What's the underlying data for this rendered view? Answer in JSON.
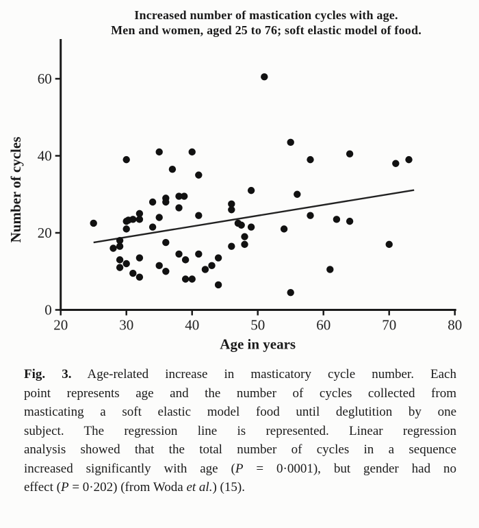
{
  "figure": {
    "title_line1": "Increased number of mastication cycles with age.",
    "title_line2": "Men and women, aged 25 to 76; soft elastic model of food."
  },
  "chart_data": {
    "type": "scatter",
    "title": "Increased number of mastication cycles with age. Men and women, aged 25 to 76; soft elastic model of food.",
    "xlabel": "Age in years",
    "ylabel": "Number of cycles",
    "xlim": [
      20,
      80
    ],
    "ylim": [
      0,
      68
    ],
    "x_ticks": [
      20,
      30,
      40,
      50,
      60,
      70,
      80
    ],
    "y_ticks": [
      0,
      20,
      40,
      60
    ],
    "grid": false,
    "legend": "none",
    "marker_color": "#111111",
    "line_color": "#222222",
    "points": [
      [
        25,
        22.5
      ],
      [
        28,
        16
      ],
      [
        29,
        18
      ],
      [
        29,
        16.5
      ],
      [
        29,
        13
      ],
      [
        29,
        11
      ],
      [
        30,
        23
      ],
      [
        30.3,
        23.3
      ],
      [
        31,
        23.5
      ],
      [
        30,
        21
      ],
      [
        30,
        12
      ],
      [
        31,
        9.5
      ],
      [
        32,
        25
      ],
      [
        32,
        23.5
      ],
      [
        32,
        13.5
      ],
      [
        32,
        8.5
      ],
      [
        34,
        28
      ],
      [
        34,
        21.5
      ],
      [
        30,
        39
      ],
      [
        35,
        41
      ],
      [
        35,
        24
      ],
      [
        35,
        11.5
      ],
      [
        36,
        29
      ],
      [
        36,
        28
      ],
      [
        36,
        17.5
      ],
      [
        36,
        10
      ],
      [
        37,
        36.5
      ],
      [
        38,
        29.5
      ],
      [
        38.8,
        29.5
      ],
      [
        38,
        26.5
      ],
      [
        38,
        14.5
      ],
      [
        39,
        13
      ],
      [
        39,
        8
      ],
      [
        40,
        41
      ],
      [
        40,
        8
      ],
      [
        41,
        35
      ],
      [
        41,
        24.5
      ],
      [
        41,
        14.5
      ],
      [
        42,
        10.5
      ],
      [
        43,
        11.5
      ],
      [
        44,
        13.5
      ],
      [
        44,
        6.5
      ],
      [
        46,
        27.5
      ],
      [
        46,
        26
      ],
      [
        46,
        16.5
      ],
      [
        47,
        22.5
      ],
      [
        47.5,
        22
      ],
      [
        48,
        19
      ],
      [
        48,
        17
      ],
      [
        49,
        31
      ],
      [
        49,
        21.5
      ],
      [
        51,
        60.5
      ],
      [
        54,
        21
      ],
      [
        55,
        43.5
      ],
      [
        55,
        4.5
      ],
      [
        56,
        30
      ],
      [
        58,
        39
      ],
      [
        58,
        24.5
      ],
      [
        61,
        10.5
      ],
      [
        62,
        23.5
      ],
      [
        64,
        40.5
      ],
      [
        64,
        23
      ],
      [
        70,
        17
      ],
      [
        71,
        38
      ],
      [
        73,
        39
      ]
    ],
    "regression_line": {
      "x1": 25,
      "y1": 17.5,
      "x2": 73.8,
      "y2": 31.1
    }
  },
  "caption": {
    "lines": [
      [
        {
          "t": "Fig. 3.",
          "b": true
        },
        {
          "t": " Age-related increase in masticatory cycle number. Each"
        }
      ],
      [
        {
          "t": "point represents age and the number of cycles collected from"
        }
      ],
      [
        {
          "t": "masticating a soft elastic model food until deglutition by one"
        }
      ],
      [
        {
          "t": "subject. The regression line is represented. Linear regression"
        }
      ],
      [
        {
          "t": "analysis showed that the total number of cycles in a sequence"
        }
      ],
      [
        {
          "t": "increased significantly with age ("
        },
        {
          "t": "P",
          "i": true
        },
        {
          "t": " = 0·0001), but gender had no"
        }
      ],
      [
        {
          "t": "effect ("
        },
        {
          "t": "P",
          "i": true
        },
        {
          "t": " = 0·202) (from Woda "
        },
        {
          "t": "et al.",
          "i": true
        },
        {
          "t": ") (15)."
        }
      ]
    ]
  }
}
